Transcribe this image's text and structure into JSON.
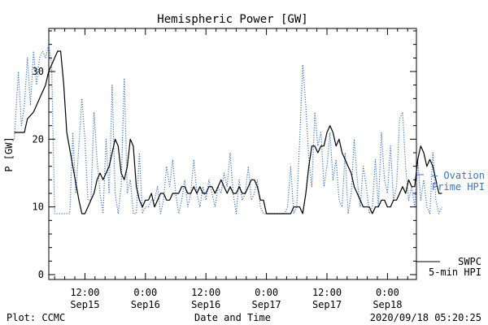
{
  "chart_data": {
    "type": "line",
    "title": "Hemispheric Power [GW]",
    "ylabel": "P [GW]",
    "xlabel": "Date and Time",
    "ylim": [
      0,
      36
    ],
    "yticks": [
      0,
      10,
      20,
      30
    ],
    "ytick_labels": [
      "0",
      "10",
      "20",
      "30"
    ],
    "xlim_hours": [
      0,
      64
    ],
    "grid": false,
    "x_ticks": [
      {
        "x": 12,
        "time": "12:00",
        "date": "Sep15"
      },
      {
        "x": 24,
        "time": "0:00",
        "date": "Sep16"
      },
      {
        "x": 36,
        "time": "12:00",
        "date": "Sep16"
      },
      {
        "x": 48,
        "time": "0:00",
        "date": "Sep17"
      },
      {
        "x": 60,
        "time": "12:00",
        "date": "Sep17"
      },
      {
        "x": 72,
        "time": "0:00",
        "date": "Sep18"
      }
    ],
    "series": [
      {
        "name": "SWPC 5-min HPI",
        "legend_lines": [
          "SWPC",
          "5-min HPI"
        ],
        "color": "#000000",
        "style": "solid",
        "points": [
          [
            -2,
            21
          ],
          [
            0,
            21
          ],
          [
            0.6,
            23
          ],
          [
            1.8,
            24
          ],
          [
            3,
            26
          ],
          [
            4.2,
            28
          ],
          [
            4.8,
            30
          ],
          [
            5.4,
            31
          ],
          [
            6,
            32
          ],
          [
            6.6,
            33
          ],
          [
            7.2,
            33
          ],
          [
            7.8,
            28
          ],
          [
            8.4,
            21
          ],
          [
            9.6,
            16
          ],
          [
            10.8,
            11
          ],
          [
            11.4,
            9
          ],
          [
            12,
            9
          ],
          [
            12.6,
            10
          ],
          [
            13.2,
            11
          ],
          [
            13.8,
            12
          ],
          [
            14.4,
            14
          ],
          [
            15,
            15
          ],
          [
            15.6,
            14
          ],
          [
            16.2,
            15
          ],
          [
            16.8,
            16
          ],
          [
            17.4,
            18
          ],
          [
            18,
            20
          ],
          [
            18.6,
            19
          ],
          [
            19.2,
            15
          ],
          [
            19.8,
            14
          ],
          [
            20.4,
            16
          ],
          [
            21,
            20
          ],
          [
            21.6,
            19
          ],
          [
            22.2,
            13
          ],
          [
            22.8,
            11
          ],
          [
            23.4,
            10
          ],
          [
            24,
            11
          ],
          [
            24.6,
            11
          ],
          [
            25.2,
            12
          ],
          [
            25.8,
            10
          ],
          [
            26.4,
            11
          ],
          [
            27,
            12
          ],
          [
            27.6,
            12
          ],
          [
            28.2,
            11
          ],
          [
            28.8,
            11
          ],
          [
            29.4,
            12
          ],
          [
            30,
            12
          ],
          [
            30.6,
            12
          ],
          [
            31.2,
            13
          ],
          [
            31.8,
            13
          ],
          [
            32.4,
            12
          ],
          [
            33,
            12
          ],
          [
            33.6,
            13
          ],
          [
            34.2,
            12
          ],
          [
            34.8,
            13
          ],
          [
            35.4,
            12
          ],
          [
            36,
            12
          ],
          [
            36.6,
            13
          ],
          [
            37.2,
            13
          ],
          [
            37.8,
            12
          ],
          [
            38.4,
            13
          ],
          [
            39,
            14
          ],
          [
            39.6,
            13
          ],
          [
            40.2,
            12
          ],
          [
            40.8,
            13
          ],
          [
            41.4,
            12
          ],
          [
            42,
            12
          ],
          [
            42.6,
            13
          ],
          [
            43.2,
            12
          ],
          [
            43.8,
            12
          ],
          [
            44.4,
            13
          ],
          [
            45,
            14
          ],
          [
            45.6,
            14
          ],
          [
            46.2,
            13
          ],
          [
            46.8,
            11
          ],
          [
            47.4,
            11
          ],
          [
            48,
            9
          ],
          [
            48.6,
            9
          ],
          [
            49.2,
            9
          ],
          [
            49.8,
            9
          ],
          [
            50.4,
            9
          ],
          [
            51,
            9
          ],
          [
            51.6,
            9
          ],
          [
            52.2,
            9
          ],
          [
            52.8,
            9
          ],
          [
            53.4,
            10
          ],
          [
            54,
            10
          ],
          [
            54.6,
            10
          ],
          [
            55.2,
            9
          ],
          [
            55.8,
            12
          ],
          [
            56.4,
            16
          ],
          [
            57,
            19
          ],
          [
            57.6,
            19
          ],
          [
            58.2,
            18
          ],
          [
            58.8,
            19
          ],
          [
            59.4,
            19
          ],
          [
            60,
            21
          ],
          [
            60.6,
            22
          ],
          [
            61.2,
            21
          ],
          [
            61.8,
            19
          ],
          [
            62.4,
            20
          ],
          [
            63,
            18
          ],
          [
            63.6,
            17
          ],
          [
            64.2,
            16
          ],
          [
            64.8,
            15
          ],
          [
            65.4,
            13
          ],
          [
            66,
            12
          ],
          [
            66.6,
            11
          ],
          [
            67.2,
            10
          ],
          [
            67.8,
            10
          ],
          [
            68.4,
            10
          ],
          [
            69,
            9
          ],
          [
            69.6,
            10
          ],
          [
            70.2,
            10
          ],
          [
            70.8,
            11
          ],
          [
            71.4,
            11
          ],
          [
            72,
            10
          ],
          [
            72.6,
            10
          ],
          [
            73.2,
            11
          ],
          [
            73.8,
            11
          ],
          [
            74.4,
            12
          ],
          [
            75,
            13
          ],
          [
            75.6,
            12
          ],
          [
            76.2,
            14
          ],
          [
            76.8,
            13
          ],
          [
            77.4,
            13
          ],
          [
            78,
            17
          ],
          [
            78.6,
            19
          ],
          [
            79.2,
            18
          ],
          [
            79.8,
            16
          ],
          [
            80.4,
            17
          ],
          [
            81,
            16
          ],
          [
            81.6,
            14
          ],
          [
            82.2,
            12
          ],
          [
            82.8,
            12
          ]
        ]
      },
      {
        "name": "Ovation Prime HPI",
        "legend_lines": [
          "— Ovation",
          "Prime HPI"
        ],
        "color": "#3a74c4",
        "style": "dotted",
        "points": [
          [
            -2,
            20
          ],
          [
            -1.2,
            30
          ],
          [
            -0.6,
            22
          ],
          [
            0,
            25
          ],
          [
            0.6,
            32
          ],
          [
            1.2,
            25
          ],
          [
            1.8,
            33
          ],
          [
            2.4,
            28
          ],
          [
            3,
            32
          ],
          [
            3.6,
            33
          ],
          [
            4.2,
            32
          ],
          [
            4.8,
            34
          ],
          [
            5.4,
            31
          ],
          [
            6,
            9
          ],
          [
            6.6,
            9
          ],
          [
            7.2,
            9
          ],
          [
            7.8,
            9
          ],
          [
            8.4,
            9
          ],
          [
            9,
            9
          ],
          [
            9.6,
            21
          ],
          [
            10.2,
            12
          ],
          [
            10.8,
            19
          ],
          [
            11.4,
            26
          ],
          [
            12,
            20
          ],
          [
            12.6,
            11
          ],
          [
            13.2,
            11
          ],
          [
            13.8,
            24
          ],
          [
            14.4,
            17
          ],
          [
            15,
            12
          ],
          [
            15.6,
            9
          ],
          [
            16.2,
            20
          ],
          [
            16.8,
            12
          ],
          [
            17.4,
            28
          ],
          [
            18,
            12
          ],
          [
            18.6,
            9
          ],
          [
            19.2,
            13
          ],
          [
            19.8,
            29
          ],
          [
            20.4,
            12
          ],
          [
            21,
            14
          ],
          [
            21.6,
            9
          ],
          [
            22.2,
            9
          ],
          [
            22.8,
            18
          ],
          [
            23.4,
            9
          ],
          [
            24,
            10
          ],
          [
            24.6,
            10
          ],
          [
            25.2,
            11
          ],
          [
            25.8,
            11
          ],
          [
            26.4,
            13
          ],
          [
            27,
            9
          ],
          [
            27.6,
            11
          ],
          [
            28.2,
            16
          ],
          [
            28.8,
            13
          ],
          [
            29.4,
            17
          ],
          [
            30,
            12
          ],
          [
            30.6,
            9
          ],
          [
            31.2,
            11
          ],
          [
            31.8,
            14
          ],
          [
            32.4,
            10
          ],
          [
            33,
            12
          ],
          [
            33.6,
            17
          ],
          [
            34.2,
            12
          ],
          [
            34.8,
            10
          ],
          [
            35.4,
            13
          ],
          [
            36,
            11
          ],
          [
            36.6,
            14
          ],
          [
            37.2,
            12
          ],
          [
            37.8,
            10
          ],
          [
            38.4,
            13
          ],
          [
            39,
            12
          ],
          [
            39.6,
            15
          ],
          [
            40.2,
            13
          ],
          [
            40.8,
            18
          ],
          [
            41.4,
            12
          ],
          [
            42,
            9
          ],
          [
            42.6,
            14
          ],
          [
            43.2,
            11
          ],
          [
            43.8,
            12
          ],
          [
            44.4,
            16
          ],
          [
            45,
            11
          ],
          [
            45.6,
            12
          ],
          [
            46.2,
            14
          ],
          [
            46.8,
            10
          ],
          [
            47.4,
            9
          ],
          [
            48,
            9
          ],
          [
            48.6,
            9
          ],
          [
            49.2,
            9
          ],
          [
            49.8,
            9
          ],
          [
            50.4,
            9
          ],
          [
            51,
            9
          ],
          [
            51.6,
            9
          ],
          [
            52.2,
            10
          ],
          [
            52.8,
            16
          ],
          [
            53.4,
            9
          ],
          [
            54,
            10
          ],
          [
            54.6,
            20
          ],
          [
            55.2,
            31
          ],
          [
            55.8,
            25
          ],
          [
            56.4,
            17
          ],
          [
            57,
            13
          ],
          [
            57.6,
            24
          ],
          [
            58.2,
            19
          ],
          [
            58.8,
            21
          ],
          [
            59.4,
            13
          ],
          [
            60,
            16
          ],
          [
            60.6,
            21
          ],
          [
            61.2,
            14
          ],
          [
            61.8,
            17
          ],
          [
            62.4,
            11
          ],
          [
            63,
            10
          ],
          [
            63.6,
            18
          ],
          [
            64.2,
            9
          ],
          [
            64.8,
            12
          ],
          [
            65.4,
            20
          ],
          [
            66,
            14
          ],
          [
            66.6,
            10
          ],
          [
            67.2,
            16
          ],
          [
            67.8,
            13
          ],
          [
            68.4,
            9
          ],
          [
            69,
            10
          ],
          [
            69.6,
            17
          ],
          [
            70.2,
            10
          ],
          [
            70.8,
            21
          ],
          [
            71.4,
            14
          ],
          [
            72,
            12
          ],
          [
            72.6,
            19
          ],
          [
            73.2,
            11
          ],
          [
            73.8,
            13
          ],
          [
            74.4,
            23
          ],
          [
            75,
            24
          ],
          [
            75.6,
            16
          ],
          [
            76.2,
            11
          ],
          [
            76.8,
            13
          ],
          [
            77.4,
            10
          ],
          [
            78,
            17
          ],
          [
            78.6,
            11
          ],
          [
            79.2,
            14
          ],
          [
            79.8,
            10
          ],
          [
            80.4,
            9
          ],
          [
            81,
            18
          ],
          [
            81.6,
            11
          ],
          [
            82.2,
            9
          ],
          [
            82.8,
            10
          ]
        ]
      }
    ]
  },
  "footer": {
    "left": "Plot: CCMC",
    "right": "2020/09/18 05:20:25"
  }
}
